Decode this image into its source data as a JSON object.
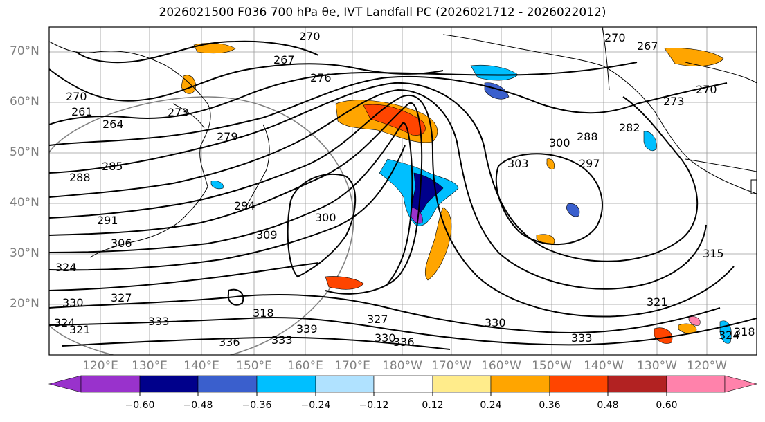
{
  "title": "2026021500 F036 700 hPa θe, IVT Landfall PC (2026021712 - 2026022012)",
  "map": {
    "lat_labels": [
      "70°N",
      "60°N",
      "50°N",
      "40°N",
      "30°N",
      "20°N"
    ],
    "lon_labels": [
      "120°E",
      "130°E",
      "140°E",
      "150°E",
      "160°E",
      "170°E",
      "180°W",
      "170°W",
      "160°W",
      "150°W",
      "140°W",
      "130°W",
      "120°W"
    ],
    "contour_labels": [
      "270",
      "267",
      "276",
      "273",
      "264",
      "279",
      "261",
      "270",
      "288",
      "285",
      "291",
      "306",
      "300",
      "294",
      "309",
      "324",
      "330",
      "327",
      "321",
      "324",
      "333",
      "318",
      "336",
      "333",
      "339",
      "327",
      "330",
      "336",
      "330",
      "333",
      "321",
      "315",
      "324",
      "318",
      "303",
      "300",
      "297",
      "288",
      "282",
      "273",
      "270",
      "267",
      "270"
    ],
    "colors": {
      "contour": "#000000",
      "coast": "#000000",
      "grid": "#808080"
    }
  },
  "colorbar": {
    "ticks": [
      "−0.60",
      "−0.48",
      "−0.36",
      "−0.24",
      "−0.12",
      "0.12",
      "0.24",
      "0.36",
      "0.48",
      "0.60"
    ],
    "colors": [
      "#9932CC",
      "#00008B",
      "#3A5FCD",
      "#00BFFF",
      "#B0E2FF",
      "#FFFFFF",
      "#FFEC8B",
      "#FFA500",
      "#FF4500",
      "#B22222",
      "#FF82AB"
    ]
  }
}
